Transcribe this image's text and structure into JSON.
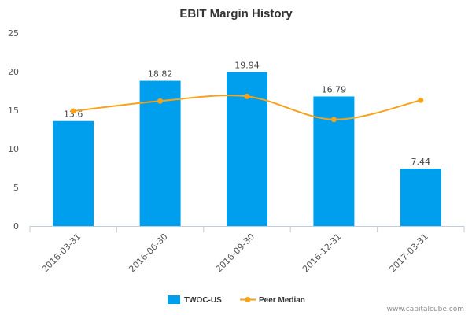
{
  "chart_data": {
    "type": "bar",
    "title": "EBIT Margin History",
    "categories": [
      "2016-03-31",
      "2016-06-30",
      "2016-09-30",
      "2016-12-31",
      "2017-03-31"
    ],
    "series": [
      {
        "name": "TWOC-US",
        "type": "bar",
        "values": [
          13.6,
          18.82,
          19.94,
          16.79,
          7.44
        ],
        "labels": [
          "13.6",
          "18.82",
          "19.94",
          "16.79",
          "7.44"
        ],
        "color": "#009fee"
      },
      {
        "name": "Peer Median",
        "type": "line",
        "values": [
          14.9,
          16.2,
          16.8,
          13.8,
          16.3
        ],
        "color": "#f7a21b"
      }
    ],
    "ylim": [
      0,
      25
    ],
    "yticks": [
      "0",
      "5",
      "10",
      "15",
      "20",
      "25"
    ],
    "grid": false,
    "legend": "bottom-center",
    "credit": "www.capitalcube.com"
  }
}
